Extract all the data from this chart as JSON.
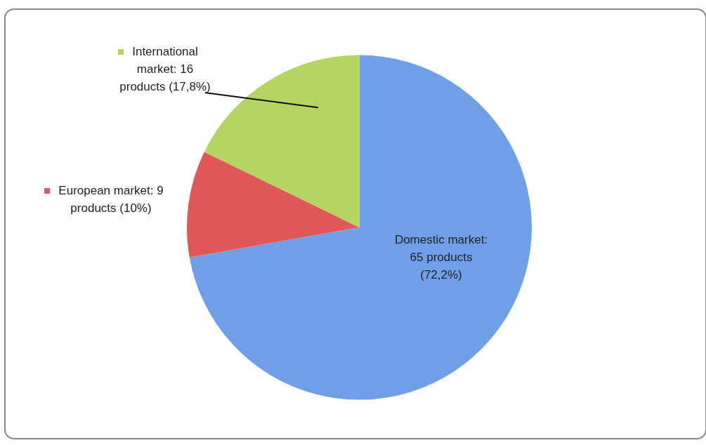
{
  "chart_data": {
    "type": "pie",
    "categories": [
      "Domestic market: 65 products (72,2%)",
      "European market: 9 products (10%)",
      "International market: 16 products (17,8%)"
    ],
    "values": [
      65,
      9,
      16
    ],
    "colors": [
      "#6f9fe6",
      "#e0595a",
      "#b5d461"
    ],
    "legend": "left"
  }
}
